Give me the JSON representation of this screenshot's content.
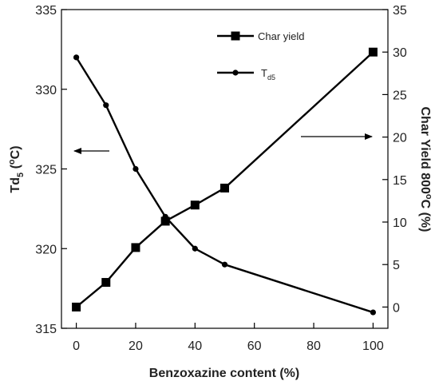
{
  "chart_data": {
    "type": "line",
    "x": [
      0,
      10,
      20,
      30,
      40,
      50,
      100
    ],
    "xlabel": "Benzoxazine content (%)",
    "xlim": [
      -5,
      105
    ],
    "xticks": [
      0,
      20,
      40,
      60,
      80,
      100
    ],
    "y_left": {
      "label_main": "Td",
      "label_sub": "5",
      "label_rest": " (",
      "label_sup": "o",
      "label_end": "C)",
      "lim": [
        315,
        335
      ],
      "ticks": [
        315,
        320,
        325,
        330,
        335
      ]
    },
    "y_right": {
      "label_main": "Char Yield 800",
      "label_sup": "o",
      "label_end": "C (%)",
      "lim": [
        -2.5,
        35
      ],
      "ticks": [
        0,
        5,
        10,
        15,
        20,
        25,
        30,
        35
      ]
    },
    "series": [
      {
        "name": "Char yield",
        "axis": "right",
        "marker": "square",
        "values": [
          0,
          2.9,
          7.0,
          10.1,
          12.0,
          14.0,
          30.0
        ]
      },
      {
        "name_main": "T",
        "name_sub": "d5",
        "axis": "left",
        "marker": "circle",
        "values": [
          332,
          329,
          325,
          322,
          320,
          319,
          316
        ]
      }
    ],
    "legend_position": "top-center",
    "grid": false,
    "annotations": [
      {
        "type": "arrow",
        "direction": "left",
        "points_to_axis": "left"
      },
      {
        "type": "arrow",
        "direction": "right",
        "points_to_axis": "right"
      }
    ],
    "colors": {
      "line": "#000000"
    }
  }
}
